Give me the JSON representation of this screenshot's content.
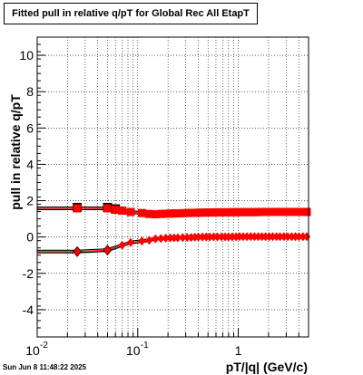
{
  "title": "Fitted pull in relative q/pT for Global Rec All EtapT",
  "footer_text": "Sun Jun  8 11:48:22 2025",
  "colors": {
    "series": "#ff0000",
    "fit": "#000000",
    "grid": "#000000"
  },
  "chart_data": {
    "type": "scatter",
    "title": "Fitted pull in relative q/pT for Global Rec All EtapT",
    "xlabel": "pT/|q| (GeV/c)",
    "ylabel": "pull in relative q/pT",
    "x_scale": "log",
    "xlim": [
      0.01,
      5
    ],
    "ylim": [
      -5.5,
      11
    ],
    "x_ticks": [
      {
        "value": 0.01,
        "label": "10",
        "sup": "-2"
      },
      {
        "value": 0.1,
        "label": "10",
        "sup": "-1"
      },
      {
        "value": 1,
        "label": "1",
        "sup": ""
      }
    ],
    "y_ticks": [
      -4,
      -2,
      0,
      2,
      4,
      6,
      8,
      10
    ],
    "grid": true,
    "series": [
      {
        "marker": "square",
        "x": [
          0.025,
          0.05,
          0.06,
          0.07,
          0.085,
          0.11,
          0.13,
          0.15,
          0.17,
          0.19,
          0.21,
          0.23,
          0.25,
          0.28,
          0.31,
          0.34,
          0.37,
          0.4,
          0.44,
          0.48,
          0.52,
          0.57,
          0.62,
          0.68,
          0.74,
          0.8,
          0.87,
          0.95,
          1.03,
          1.12,
          1.22,
          1.33,
          1.45,
          1.58,
          1.72,
          1.87,
          2.03,
          2.2,
          2.4,
          2.6,
          2.85,
          3.1,
          3.4,
          3.7,
          4.0,
          4.4,
          4.8
        ],
        "values": [
          1.58,
          1.58,
          1.5,
          1.45,
          1.38,
          1.32,
          1.27,
          1.25,
          1.27,
          1.28,
          1.29,
          1.3,
          1.3,
          1.31,
          1.32,
          1.33,
          1.33,
          1.34,
          1.34,
          1.35,
          1.35,
          1.35,
          1.36,
          1.36,
          1.36,
          1.36,
          1.37,
          1.37,
          1.37,
          1.37,
          1.37,
          1.37,
          1.37,
          1.37,
          1.38,
          1.38,
          1.38,
          1.38,
          1.38,
          1.38,
          1.38,
          1.38,
          1.38,
          1.38,
          1.38,
          1.38,
          1.38
        ]
      },
      {
        "marker": "diamond",
        "x": [
          0.025,
          0.05,
          0.07,
          0.085,
          0.11,
          0.13,
          0.15,
          0.17,
          0.19,
          0.21,
          0.23,
          0.25,
          0.28,
          0.31,
          0.34,
          0.37,
          0.4,
          0.44,
          0.48,
          0.52,
          0.57,
          0.62,
          0.68,
          0.74,
          0.8,
          0.87,
          0.95,
          1.03,
          1.12,
          1.22,
          1.33,
          1.45,
          1.58,
          1.72,
          1.87,
          2.03,
          2.2,
          2.4,
          2.6,
          2.85,
          3.1,
          3.4,
          3.7,
          4.0,
          4.4,
          4.8
        ],
        "values": [
          -0.8,
          -0.72,
          -0.45,
          -0.3,
          -0.22,
          -0.18,
          -0.1,
          -0.08,
          -0.06,
          -0.05,
          -0.05,
          -0.04,
          -0.03,
          -0.02,
          -0.02,
          -0.01,
          0.0,
          0.0,
          0.0,
          0.0,
          0.01,
          0.01,
          0.01,
          0.01,
          0.01,
          0.01,
          0.01,
          0.02,
          0.02,
          0.02,
          0.02,
          0.02,
          0.02,
          0.02,
          0.02,
          0.02,
          0.02,
          0.02,
          0.02,
          0.02,
          0.02,
          0.02,
          0.02,
          0.02,
          0.02,
          0.02
        ]
      }
    ]
  }
}
